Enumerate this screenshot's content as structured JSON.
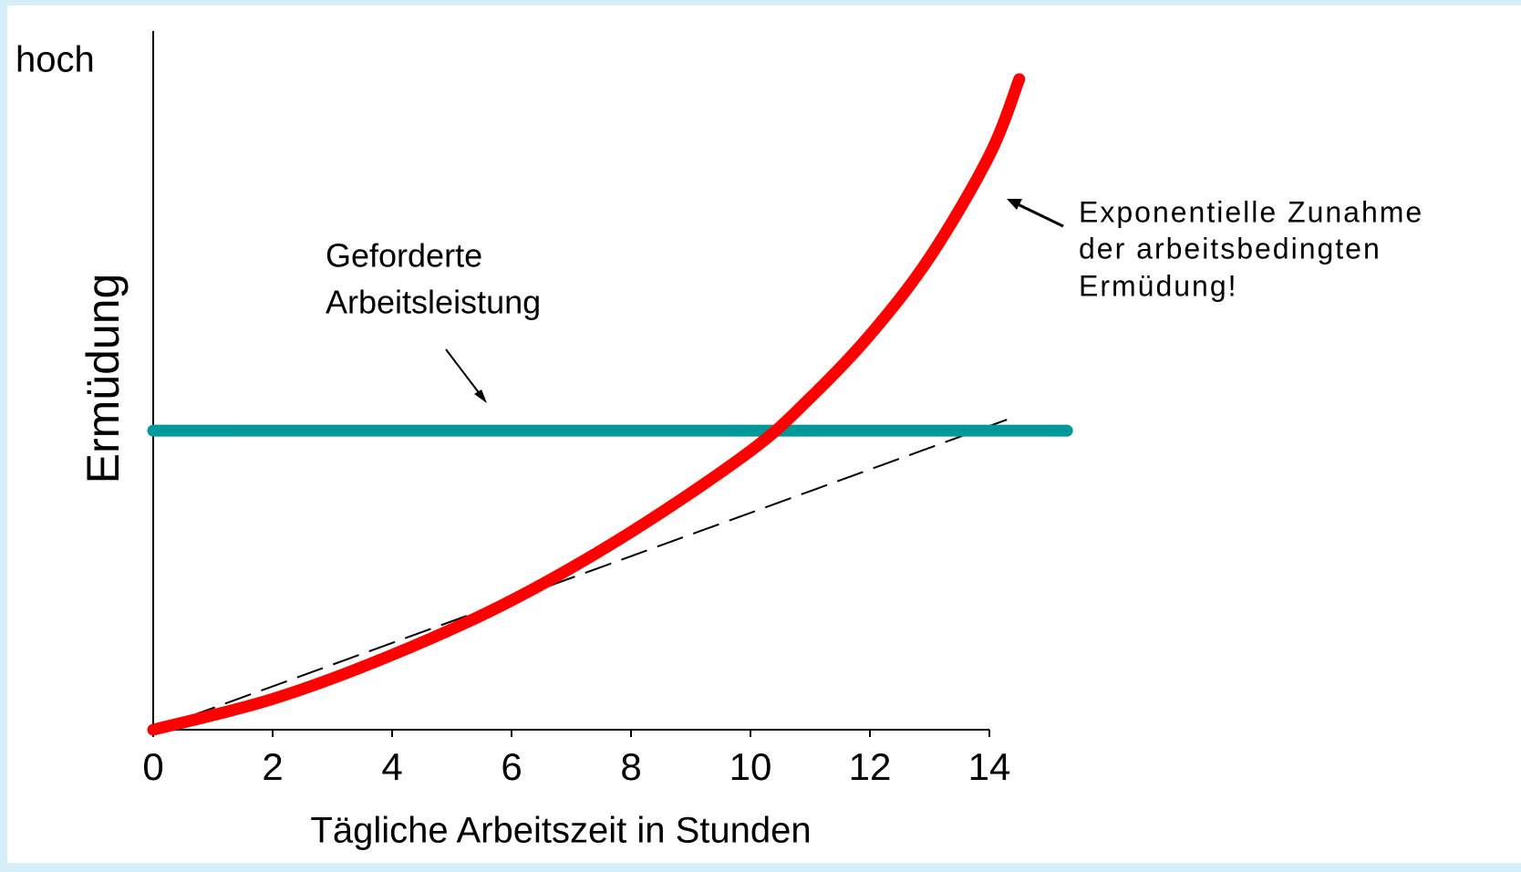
{
  "chart_data": {
    "type": "line",
    "ylabel_top": "hoch",
    "ylabel": "Ermüdung",
    "xlabel": "Tägliche Arbeitszeit in Stunden",
    "xlim": [
      0,
      14
    ],
    "xticks": [
      0,
      2,
      4,
      6,
      8,
      10,
      12,
      14
    ],
    "ylim": [
      0,
      100
    ],
    "series": [
      {
        "color": "#ff0000",
        "style": "solid",
        "x": [
          0,
          2,
          4,
          6,
          8,
          10,
          11,
          12,
          13,
          14,
          14.5
        ],
        "values": [
          0,
          4.4,
          10.7,
          18.5,
          28.3,
          39.9,
          47.5,
          56.5,
          67.6,
          82.2,
          93.1
        ]
      },
      {
        "color": "#009999",
        "style": "solid",
        "x": [
          0,
          15.3
        ],
        "values": [
          42.8,
          42.8
        ]
      },
      {
        "color": "#000000",
        "style": "dashed",
        "x": [
          0,
          14.4
        ],
        "values": [
          0,
          44.7
        ]
      }
    ],
    "annotations": [
      {
        "lines": [
          "Geforderte",
          "Arbeitsleistung"
        ]
      },
      {
        "lines": [
          "Exponentielle Zunahme",
          "der arbeitsbedingten",
          "Ermüdung!"
        ]
      }
    ]
  }
}
